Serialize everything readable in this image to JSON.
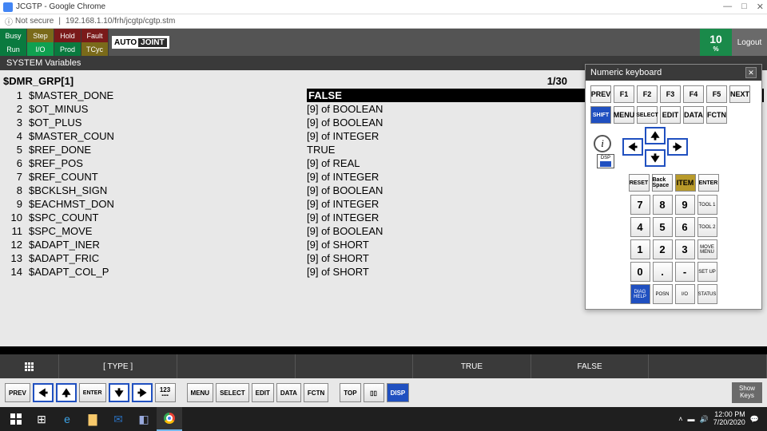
{
  "chrome": {
    "title": "JCGTP - Google Chrome",
    "insecure": "Not secure",
    "url": "192.168.1.10/frh/jcgtp/cgtp.stm"
  },
  "status": {
    "busy": "Busy",
    "step": "Step",
    "hold": "Hold",
    "fault": "Fault",
    "run": "Run",
    "io": "I/O",
    "prod": "Prod",
    "tcyc": "TCyc",
    "mode1": "AUTO",
    "mode2": "JOINT",
    "pct": "10",
    "pct_sym": "%",
    "logout": "Logout"
  },
  "header": "SYSTEM Variables",
  "page_ind": "1/30",
  "var_header": "$DMR_GRP[1]",
  "vars": [
    {
      "n": "1",
      "name": "$MASTER_DONE",
      "val": "FALSE",
      "sel": true
    },
    {
      "n": "2",
      "name": "$OT_MINUS",
      "val": "[9] of BOOLEAN"
    },
    {
      "n": "3",
      "name": "$OT_PLUS",
      "val": "[9] of BOOLEAN"
    },
    {
      "n": "4",
      "name": "$MASTER_COUN",
      "val": "[9] of INTEGER"
    },
    {
      "n": "5",
      "name": "$REF_DONE",
      "val": "TRUE"
    },
    {
      "n": "6",
      "name": "$REF_POS",
      "val": "[9] of REAL"
    },
    {
      "n": "7",
      "name": "$REF_COUNT",
      "val": "[9] of INTEGER"
    },
    {
      "n": "8",
      "name": "$BCKLSH_SIGN",
      "val": "[9] of BOOLEAN"
    },
    {
      "n": "9",
      "name": "$EACHMST_DON",
      "val": "[9] of INTEGER"
    },
    {
      "n": "10",
      "name": "$SPC_COUNT",
      "val": "[9] of INTEGER"
    },
    {
      "n": "11",
      "name": "$SPC_MOVE",
      "val": "[9] of BOOLEAN"
    },
    {
      "n": "12",
      "name": "$ADAPT_INER",
      "val": "[9] of SHORT"
    },
    {
      "n": "13",
      "name": "$ADAPT_FRIC",
      "val": "[9] of SHORT"
    },
    {
      "n": "14",
      "name": "$ADAPT_COL_P",
      "val": "[9] of SHORT"
    }
  ],
  "numkb": {
    "title": "Numeric keyboard",
    "r1": [
      "PREV",
      "F1",
      "F2",
      "F3",
      "F4",
      "F5",
      "NEXT"
    ],
    "r2": [
      "SHIFT",
      "MENU",
      "SELECT",
      "EDIT",
      "DATA",
      "FCTN"
    ],
    "info": "i",
    "r3": [
      "RESET",
      "Back Space",
      "ITEM",
      "ENTER"
    ],
    "grid": [
      [
        "7",
        "8",
        "9",
        "TOOL 1"
      ],
      [
        "4",
        "5",
        "6",
        "TOOL 2"
      ],
      [
        "1",
        "2",
        "3",
        "MOVE MENU"
      ],
      [
        "0",
        ".",
        "-",
        "SET UP"
      ],
      [
        "DIAG HELP",
        "POSN",
        "I/O",
        "STATUS"
      ]
    ]
  },
  "bot1": {
    "type": "[ TYPE ]",
    "true": "TRUE",
    "false": "FALSE"
  },
  "bot2": {
    "prev": "PREV",
    "enter": "ENTER",
    "num": "123",
    "menu": "MENU",
    "select": "SELECT",
    "edit": "EDIT",
    "data": "DATA",
    "fctn": "FCTN",
    "top": "TOP",
    "dsp": "DISP",
    "showkeys": "Show Keys"
  },
  "taskbar": {
    "time": "12:00 PM",
    "date": "7/20/2020"
  }
}
